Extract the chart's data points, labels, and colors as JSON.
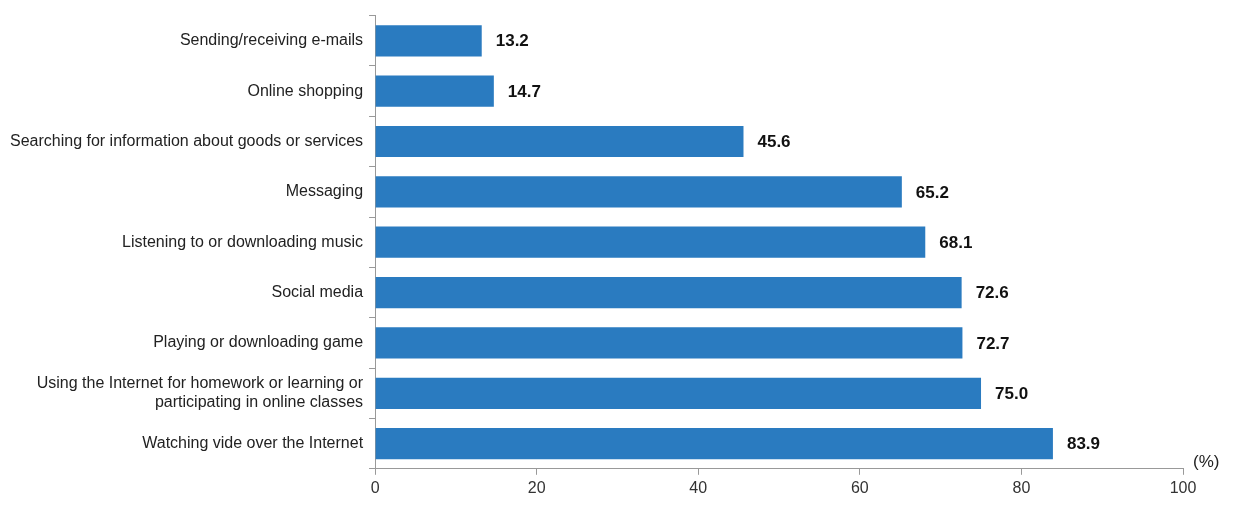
{
  "chart_data": {
    "type": "bar",
    "orientation": "horizontal",
    "xlabel": "(%)",
    "categories": [
      "Sending/receiving e-mails",
      "Online shopping",
      "Searching for information about goods or services",
      "Messaging",
      "Listening to or downloading music",
      "Social media",
      "Playing or downloading game",
      "Using the Internet for homework or learning or participating in online classes",
      "Watching vide over the Internet"
    ],
    "values": [
      13.2,
      14.7,
      45.6,
      65.2,
      68.1,
      72.6,
      72.7,
      75.0,
      83.9
    ],
    "color": "#2a7bc0",
    "xlim": [
      0,
      100
    ],
    "xticks": [
      0,
      20,
      40,
      60,
      80,
      100
    ],
    "value_labels": [
      "13.2",
      "14.7",
      "45.6",
      "65.2",
      "68.1",
      "72.6",
      "72.7",
      "75.0",
      "83.9"
    ],
    "grid": false,
    "legend": false
  }
}
